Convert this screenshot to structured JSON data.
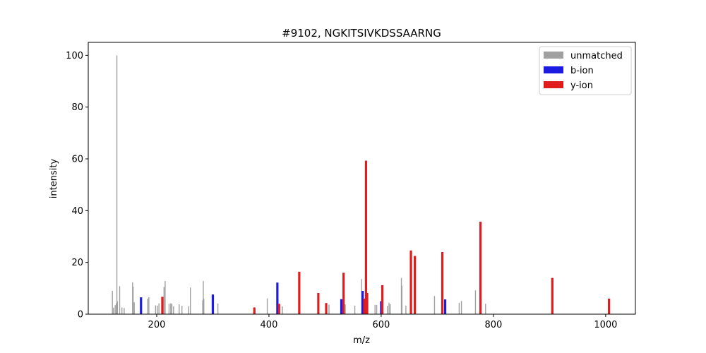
{
  "chart_data": {
    "type": "bar",
    "title": "#9102, NGKITSIVKDSSAARNG",
    "xlabel": "m/z",
    "ylabel": "intensity",
    "xlim": [
      78,
      1053
    ],
    "ylim": [
      0,
      105
    ],
    "xticks": [
      200,
      400,
      600,
      800,
      1000
    ],
    "yticks": [
      0,
      20,
      40,
      60,
      80,
      100
    ],
    "grid": false,
    "legend_position": "top-right",
    "series": [
      {
        "name": "unmatched",
        "color": "#a0a0a0",
        "points": [
          [
            121,
            9.0
          ],
          [
            123,
            2.5
          ],
          [
            126,
            3.5
          ],
          [
            128,
            4.2
          ],
          [
            129,
            100.0
          ],
          [
            130,
            5.0
          ],
          [
            134,
            10.8
          ],
          [
            138,
            2.6
          ],
          [
            142,
            2.4
          ],
          [
            157,
            12.3
          ],
          [
            158,
            10.6
          ],
          [
            160,
            4.6
          ],
          [
            184,
            6.0
          ],
          [
            186,
            6.5
          ],
          [
            198,
            3.4
          ],
          [
            201,
            3.3
          ],
          [
            204,
            4.2
          ],
          [
            213,
            10.5
          ],
          [
            215,
            12.8
          ],
          [
            222,
            4.0
          ],
          [
            225,
            4.2
          ],
          [
            227,
            4.0
          ],
          [
            230,
            3.0
          ],
          [
            240,
            3.8
          ],
          [
            245,
            3.2
          ],
          [
            257,
            3.1
          ],
          [
            260,
            10.3
          ],
          [
            282,
            5.4
          ],
          [
            283,
            12.8
          ],
          [
            284,
            6.0
          ],
          [
            309,
            4.1
          ],
          [
            397,
            6.1
          ],
          [
            424,
            3.0
          ],
          [
            455,
            3.4
          ],
          [
            507,
            3.7
          ],
          [
            532,
            3.6
          ],
          [
            536,
            3.8
          ],
          [
            553,
            3.3
          ],
          [
            565,
            13.6
          ],
          [
            589,
            3.6
          ],
          [
            592,
            3.6
          ],
          [
            600,
            3.5
          ],
          [
            611,
            3.2
          ],
          [
            614,
            4.4
          ],
          [
            616,
            3.9
          ],
          [
            636,
            14.0
          ],
          [
            637,
            11.0
          ],
          [
            644,
            3.3
          ],
          [
            695,
            7.0
          ],
          [
            739,
            4.4
          ],
          [
            743,
            5.1
          ],
          [
            768,
            9.2
          ],
          [
            786,
            4.0
          ]
        ]
      },
      {
        "name": "b-ion",
        "color": "#1c1ce0",
        "points": [
          [
            172,
            6.5
          ],
          [
            300,
            7.6
          ],
          [
            415,
            12.2
          ],
          [
            529,
            5.8
          ],
          [
            567,
            9.0
          ],
          [
            600,
            5.0
          ],
          [
            714,
            5.7
          ]
        ]
      },
      {
        "name": "y-ion",
        "color": "#e01c1c",
        "points": [
          [
            210,
            6.7
          ],
          [
            374,
            2.6
          ],
          [
            418,
            4.0
          ],
          [
            454,
            16.4
          ],
          [
            488,
            8.2
          ],
          [
            502,
            4.3
          ],
          [
            533,
            16.0
          ],
          [
            570,
            6.0
          ],
          [
            573,
            59.3
          ],
          [
            575,
            8.2
          ],
          [
            602,
            11.2
          ],
          [
            653,
            24.6
          ],
          [
            660,
            22.5
          ],
          [
            709,
            24.0
          ],
          [
            777,
            35.7
          ],
          [
            905,
            14.0
          ],
          [
            1006,
            6.0
          ]
        ]
      }
    ]
  }
}
